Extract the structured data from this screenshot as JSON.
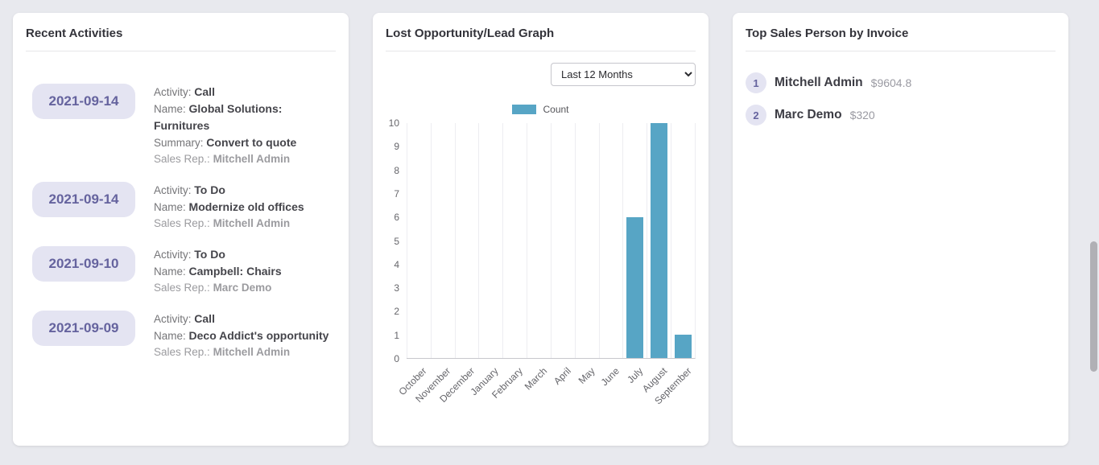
{
  "recent_activities": {
    "title": "Recent Activities",
    "labels": {
      "activity": "Activity:",
      "name": "Name:",
      "summary": "Summary:",
      "sales_rep": "Sales Rep.:"
    },
    "items": [
      {
        "date": "2021-09-14",
        "activity": "Call",
        "name": "Global Solutions: Furnitures",
        "summary": "Convert to quote",
        "sales_rep": "Mitchell Admin"
      },
      {
        "date": "2021-09-14",
        "activity": "To Do",
        "name": "Modernize old offices",
        "sales_rep": "Mitchell Admin"
      },
      {
        "date": "2021-09-10",
        "activity": "To Do",
        "name": "Campbell: Chairs",
        "sales_rep": "Marc Demo"
      },
      {
        "date": "2021-09-09",
        "activity": "Call",
        "name": "Deco Addict's opportunity",
        "sales_rep": "Mitchell Admin"
      }
    ]
  },
  "lost_graph": {
    "title": "Lost Opportunity/Lead Graph",
    "period_selector": {
      "selected": "Last 12 Months"
    },
    "legend": {
      "label": "Count",
      "color": "#57a5c5"
    }
  },
  "chart_data": {
    "type": "bar",
    "title": "Lost Opportunity/Lead Graph",
    "categories": [
      "October",
      "November",
      "December",
      "January",
      "February",
      "March",
      "April",
      "May",
      "June",
      "July",
      "August",
      "September"
    ],
    "series": [
      {
        "name": "Count",
        "values": [
          0,
          0,
          0,
          0,
          0,
          0,
          0,
          0,
          0,
          6,
          10,
          1
        ],
        "color": "#57a5c5"
      }
    ],
    "ylim": [
      0,
      10
    ],
    "yticks": [
      0,
      1,
      2,
      3,
      4,
      5,
      6,
      7,
      8,
      9,
      10
    ],
    "grid": "vertical",
    "legend_position": "top"
  },
  "top_sales": {
    "title": "Top Sales Person by Invoice",
    "items": [
      {
        "rank": "1",
        "name": "Mitchell Admin",
        "amount": "$9604.8"
      },
      {
        "rank": "2",
        "name": "Marc Demo",
        "amount": "$320"
      }
    ]
  }
}
